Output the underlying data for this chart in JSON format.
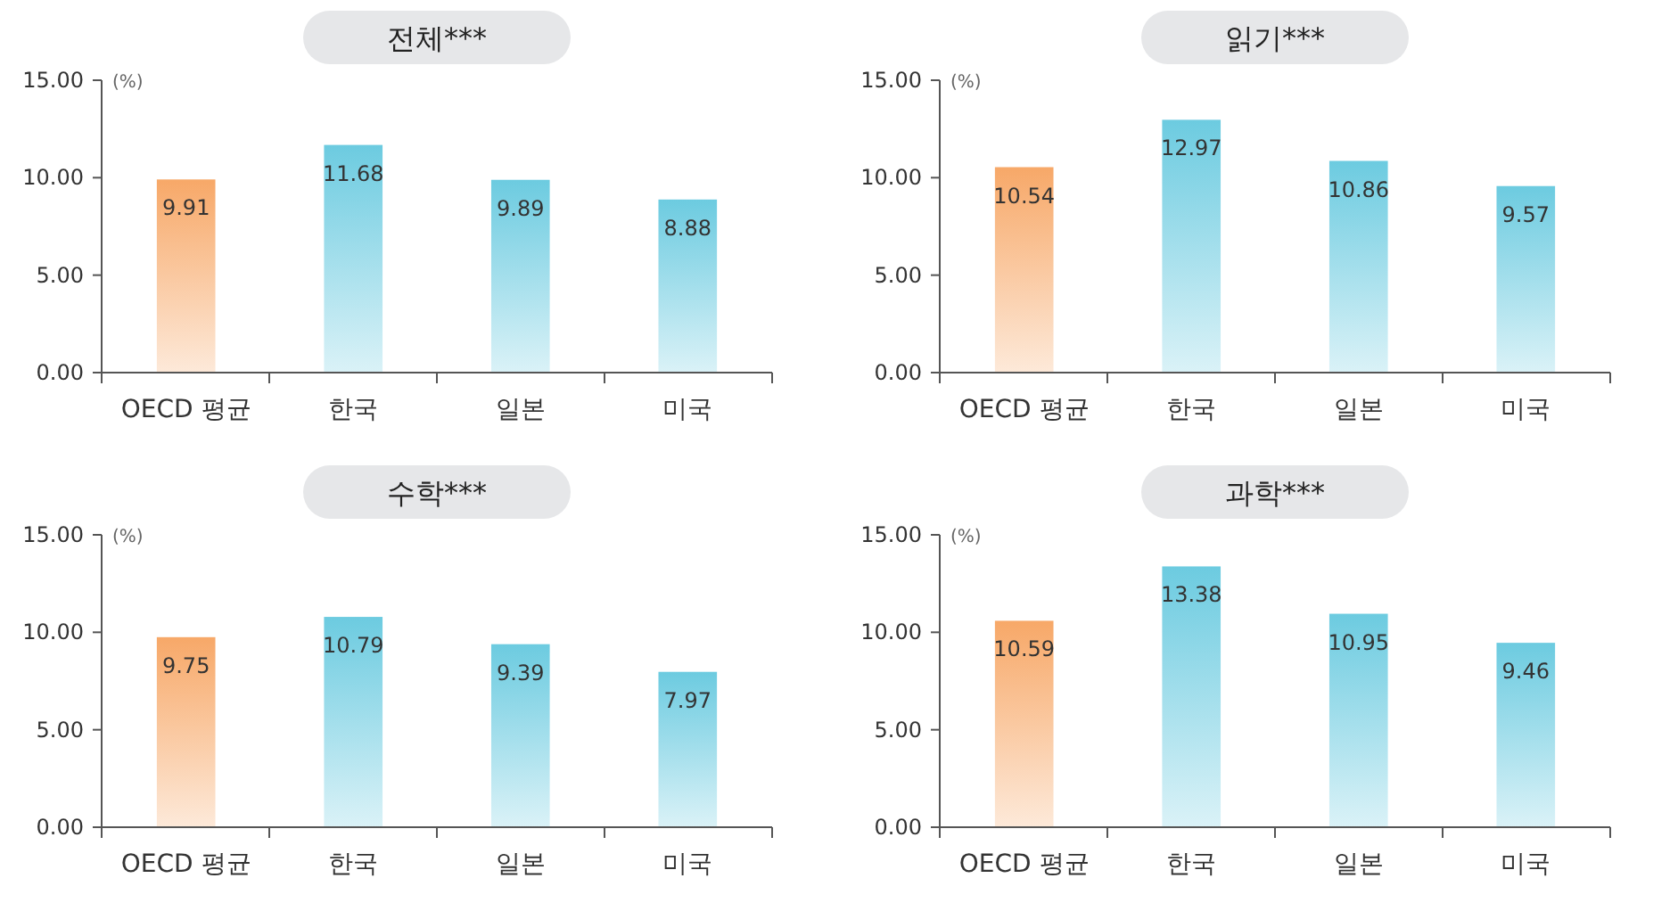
{
  "chart_data": [
    {
      "type": "bar",
      "title": "전체***",
      "ylabel": "(%)",
      "categories": [
        "OECD 평균",
        "한국",
        "일본",
        "미국"
      ],
      "values": [
        9.91,
        11.68,
        9.89,
        8.88
      ],
      "colors": [
        "#f7a868",
        "#6ccbe0",
        "#6ccbe0",
        "#6ccbe0"
      ],
      "ylim": [
        0,
        15
      ],
      "yticks": [
        {
          "value": 0,
          "label": "0.00"
        },
        {
          "value": 5,
          "label": "5.00"
        },
        {
          "value": 10,
          "label": "10.00"
        },
        {
          "value": 15,
          "label": "15.00"
        }
      ],
      "data_labels": true
    },
    {
      "type": "bar",
      "title": "읽기***",
      "ylabel": "(%)",
      "categories": [
        "OECD 평균",
        "한국",
        "일본",
        "미국"
      ],
      "values": [
        10.54,
        12.97,
        10.86,
        9.57
      ],
      "colors": [
        "#f7a868",
        "#6ccbe0",
        "#6ccbe0",
        "#6ccbe0"
      ],
      "ylim": [
        0,
        15
      ],
      "yticks": [
        {
          "value": 0,
          "label": "0.00"
        },
        {
          "value": 5,
          "label": "5.00"
        },
        {
          "value": 10,
          "label": "10.00"
        },
        {
          "value": 15,
          "label": "15.00"
        }
      ],
      "data_labels": true
    },
    {
      "type": "bar",
      "title": "수학***",
      "ylabel": "(%)",
      "categories": [
        "OECD 평균",
        "한국",
        "일본",
        "미국"
      ],
      "values": [
        9.75,
        10.79,
        9.39,
        7.97
      ],
      "colors": [
        "#f7a868",
        "#6ccbe0",
        "#6ccbe0",
        "#6ccbe0"
      ],
      "ylim": [
        0,
        15
      ],
      "yticks": [
        {
          "value": 0,
          "label": "0.00"
        },
        {
          "value": 5,
          "label": "5.00"
        },
        {
          "value": 10,
          "label": "10.00"
        },
        {
          "value": 15,
          "label": "15.00"
        }
      ],
      "data_labels": true
    },
    {
      "type": "bar",
      "title": "과학***",
      "ylabel": "(%)",
      "categories": [
        "OECD 평균",
        "한국",
        "일본",
        "미국"
      ],
      "values": [
        10.59,
        13.38,
        10.95,
        9.46
      ],
      "colors": [
        "#f7a868",
        "#6ccbe0",
        "#6ccbe0",
        "#6ccbe0"
      ],
      "ylim": [
        0,
        15
      ],
      "yticks": [
        {
          "value": 0,
          "label": "0.00"
        },
        {
          "value": 5,
          "label": "5.00"
        },
        {
          "value": 10,
          "label": "10.00"
        },
        {
          "value": 15,
          "label": "15.00"
        }
      ],
      "data_labels": true
    }
  ]
}
